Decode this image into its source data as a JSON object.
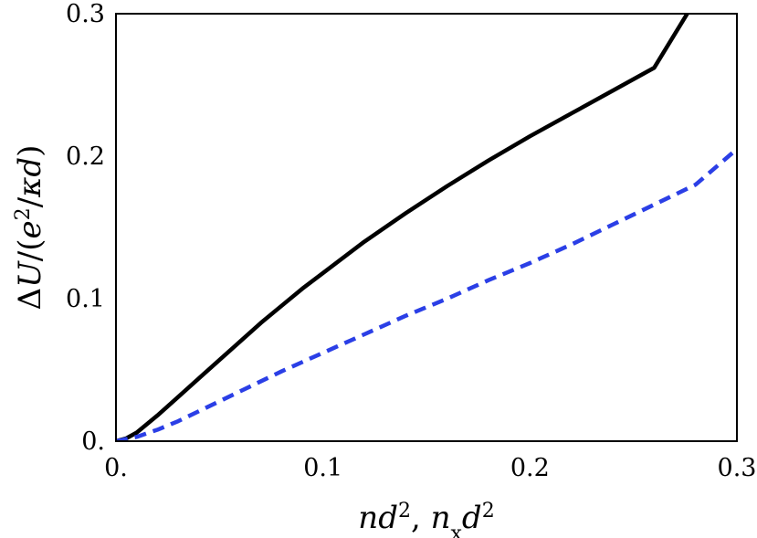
{
  "chart_data": {
    "type": "line",
    "title": "",
    "xlabel": {
      "display": "nd², nₓd²",
      "parts": [
        {
          "t": "n",
          "italic": true
        },
        {
          "t": "d",
          "italic": true
        },
        {
          "t": "2",
          "sup": true
        },
        {
          "t": ", ",
          "italic": false
        },
        {
          "t": "n",
          "italic": true
        },
        {
          "t": "x",
          "sub": true
        },
        {
          "t": "d",
          "italic": true
        },
        {
          "t": "2",
          "sup": true
        }
      ]
    },
    "ylabel": {
      "display": "ΔU/(e²/κd)",
      "parts": [
        {
          "t": "Δ",
          "italic": false
        },
        {
          "t": "U",
          "italic": true
        },
        {
          "t": "/(",
          "italic": false
        },
        {
          "t": "e",
          "italic": true
        },
        {
          "t": "2",
          "sup": true
        },
        {
          "t": "/",
          "italic": false
        },
        {
          "t": "κd",
          "italic": true
        },
        {
          "t": ")",
          "italic": false
        }
      ]
    },
    "xlim": [
      0,
      0.3
    ],
    "ylim": [
      0,
      0.3
    ],
    "xticks": [
      {
        "value": 0,
        "label": "0."
      },
      {
        "value": 0.1,
        "label": "0.1"
      },
      {
        "value": 0.2,
        "label": "0.2"
      },
      {
        "value": 0.3,
        "label": "0.3"
      }
    ],
    "yticks": [
      {
        "value": 0,
        "label": "0."
      },
      {
        "value": 0.1,
        "label": "0.1"
      },
      {
        "value": 0.2,
        "label": "0.2"
      },
      {
        "value": 0.3,
        "label": "0.3"
      }
    ],
    "grid": false,
    "legend": "none",
    "series": [
      {
        "color": "#000000",
        "style": "solid",
        "x": [
          0,
          0.005,
          0.01,
          0.015,
          0.02,
          0.03,
          0.04,
          0.05,
          0.06,
          0.07,
          0.08,
          0.09,
          0.1,
          0.12,
          0.14,
          0.16,
          0.18,
          0.2,
          0.22,
          0.24,
          0.26,
          0.276
        ],
        "y": [
          0,
          0.002,
          0.006,
          0.012,
          0.018,
          0.031,
          0.044,
          0.057,
          0.07,
          0.083,
          0.095,
          0.107,
          0.118,
          0.14,
          0.16,
          0.179,
          0.197,
          0.214,
          0.23,
          0.246,
          0.262,
          0.3
        ]
      },
      {
        "color": "#2b3fe6",
        "style": "dashed",
        "x": [
          0,
          0.01,
          0.02,
          0.03,
          0.04,
          0.05,
          0.06,
          0.08,
          0.1,
          0.12,
          0.14,
          0.16,
          0.18,
          0.2,
          0.22,
          0.24,
          0.26,
          0.28,
          0.3
        ],
        "y": [
          0,
          0.003,
          0.008,
          0.014,
          0.021,
          0.028,
          0.035,
          0.049,
          0.062,
          0.075,
          0.088,
          0.1,
          0.113,
          0.125,
          0.138,
          0.152,
          0.166,
          0.18,
          0.205
        ]
      }
    ]
  }
}
